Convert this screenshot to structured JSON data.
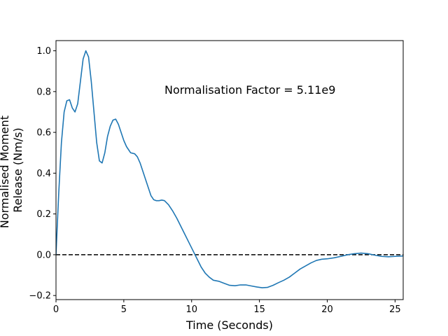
{
  "chart_data": {
    "type": "line",
    "title": "",
    "xlabel": "Time (Seconds)",
    "ylabel_lines": [
      "Normalised Moment",
      "Release (Nm/s)"
    ],
    "xlim": [
      0,
      25.6
    ],
    "ylim": [
      -0.22,
      1.05
    ],
    "x_ticks": [
      0,
      5,
      10,
      15,
      20,
      25
    ],
    "y_ticks": [
      -0.2,
      0.0,
      0.2,
      0.4,
      0.6,
      0.8,
      1.0
    ],
    "x_tick_labels": [
      "0",
      "5",
      "10",
      "15",
      "20",
      "25"
    ],
    "y_tick_labels": [
      "−0.2",
      "0.0",
      "0.2",
      "0.4",
      "0.6",
      "0.8",
      "1.0"
    ],
    "grid": false,
    "line_color": "#1f77b4",
    "zero_line": {
      "y": 0.0,
      "style": "dashed",
      "color": "#000000"
    },
    "annotation": {
      "text": "Normalisation Factor = 5.11e9",
      "x": 8.0,
      "y": 0.81
    },
    "series": [
      {
        "x": [
          0,
          0.2,
          0.4,
          0.6,
          0.8,
          1.0,
          1.2,
          1.4,
          1.6,
          1.8,
          2.0,
          2.2,
          2.4,
          2.6,
          2.8,
          3.0,
          3.2,
          3.4,
          3.6,
          3.8,
          4.0,
          4.2,
          4.4,
          4.6,
          4.8,
          5.0,
          5.2,
          5.5,
          5.8,
          6.0,
          6.2,
          6.5,
          6.8,
          7.0,
          7.2,
          7.4,
          7.6,
          7.8,
          8.0,
          8.3,
          8.6,
          8.9,
          9.2,
          9.5,
          9.8,
          10.1,
          10.4,
          10.7,
          11.0,
          11.3,
          11.6,
          12.0,
          12.4,
          12.8,
          13.2,
          13.6,
          14.0,
          14.4,
          14.8,
          15.2,
          15.6,
          16.0,
          16.4,
          16.8,
          17.2,
          17.6,
          18.0,
          18.4,
          18.8,
          19.2,
          19.6,
          20.0,
          20.5,
          21.0,
          21.5,
          22.0,
          22.5,
          23.0,
          23.5,
          24.0,
          24.5,
          25.0,
          25.6
        ],
        "y": [
          0.0,
          0.3,
          0.55,
          0.7,
          0.755,
          0.76,
          0.72,
          0.7,
          0.74,
          0.85,
          0.96,
          1.0,
          0.97,
          0.85,
          0.7,
          0.55,
          0.46,
          0.45,
          0.5,
          0.58,
          0.63,
          0.66,
          0.665,
          0.64,
          0.6,
          0.56,
          0.53,
          0.5,
          0.495,
          0.48,
          0.45,
          0.39,
          0.33,
          0.29,
          0.27,
          0.265,
          0.265,
          0.268,
          0.265,
          0.245,
          0.215,
          0.18,
          0.14,
          0.1,
          0.06,
          0.02,
          -0.02,
          -0.06,
          -0.09,
          -0.11,
          -0.125,
          -0.13,
          -0.14,
          -0.15,
          -0.152,
          -0.148,
          -0.148,
          -0.153,
          -0.158,
          -0.162,
          -0.16,
          -0.15,
          -0.137,
          -0.125,
          -0.11,
          -0.09,
          -0.07,
          -0.055,
          -0.04,
          -0.028,
          -0.022,
          -0.02,
          -0.015,
          -0.008,
          0.0,
          0.005,
          0.008,
          0.005,
          -0.002,
          -0.008,
          -0.01,
          -0.008,
          -0.006
        ]
      }
    ]
  }
}
